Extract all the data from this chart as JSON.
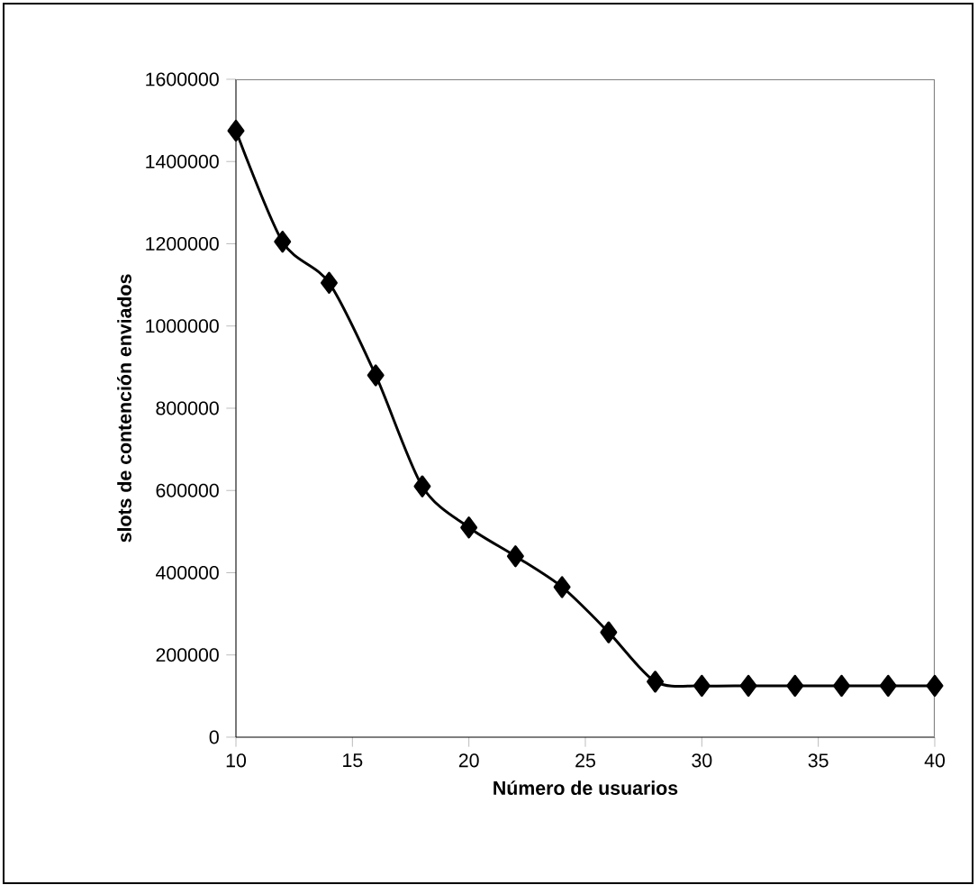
{
  "chart_data": {
    "type": "line",
    "xlabel": "Número de usuarios",
    "ylabel": "slots de contención enviados",
    "x": [
      10,
      12,
      14,
      16,
      18,
      20,
      22,
      24,
      26,
      28,
      30,
      32,
      34,
      36,
      38,
      40
    ],
    "series": [
      {
        "color": "#000000",
        "values": [
          1475000,
          1205000,
          1105000,
          880000,
          610000,
          510000,
          440000,
          365000,
          255000,
          135000,
          125000,
          125000,
          125000,
          125000,
          125000,
          125000
        ]
      }
    ],
    "xlim": [
      10,
      40
    ],
    "xticks": [
      10,
      15,
      20,
      25,
      30,
      35,
      40
    ],
    "ylim": [
      0,
      1600000
    ],
    "yticks": [
      0,
      200000,
      400000,
      600000,
      800000,
      1000000,
      1200000,
      1400000,
      1600000
    ],
    "marker": "diamond",
    "line_style": "solid"
  }
}
